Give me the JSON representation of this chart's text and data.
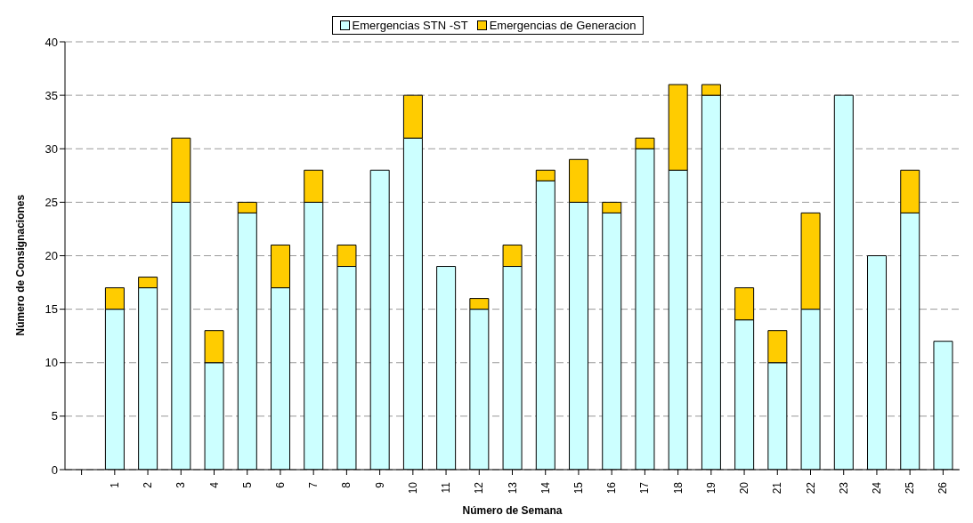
{
  "chart_data": {
    "type": "bar",
    "stacked": true,
    "xlabel": "Número de Semana",
    "ylabel": "Número de Consignaciones",
    "categories": [
      null,
      "1",
      "2",
      "3",
      "4",
      "5",
      "6",
      "7",
      "8",
      "9",
      "10",
      "11",
      "12",
      "13",
      "14",
      "15",
      "16",
      "17",
      "18",
      "19",
      "20",
      "21",
      "22",
      "23",
      "24",
      "25",
      "26"
    ],
    "series": [
      {
        "name": "Emergencias STN -ST",
        "color": "#ccffff",
        "values": [
          null,
          15,
          17,
          25,
          10,
          24,
          17,
          25,
          19,
          28,
          31,
          19,
          15,
          19,
          27,
          25,
          24,
          30,
          28,
          35,
          14,
          10,
          15,
          35,
          20,
          24,
          12
        ]
      },
      {
        "name": "Emergencias de Generacion",
        "color": "#ffcc00",
        "values": [
          null,
          2,
          1,
          6,
          3,
          1,
          4,
          3,
          2,
          null,
          4,
          null,
          1,
          2,
          1,
          4,
          1,
          1,
          8,
          1,
          3,
          3,
          9,
          null,
          null,
          4,
          null
        ]
      }
    ],
    "ylim": [
      0,
      40
    ],
    "yticks": [
      0,
      5,
      10,
      15,
      20,
      25,
      30,
      35,
      40
    ],
    "grid": "y",
    "legend": "top"
  }
}
